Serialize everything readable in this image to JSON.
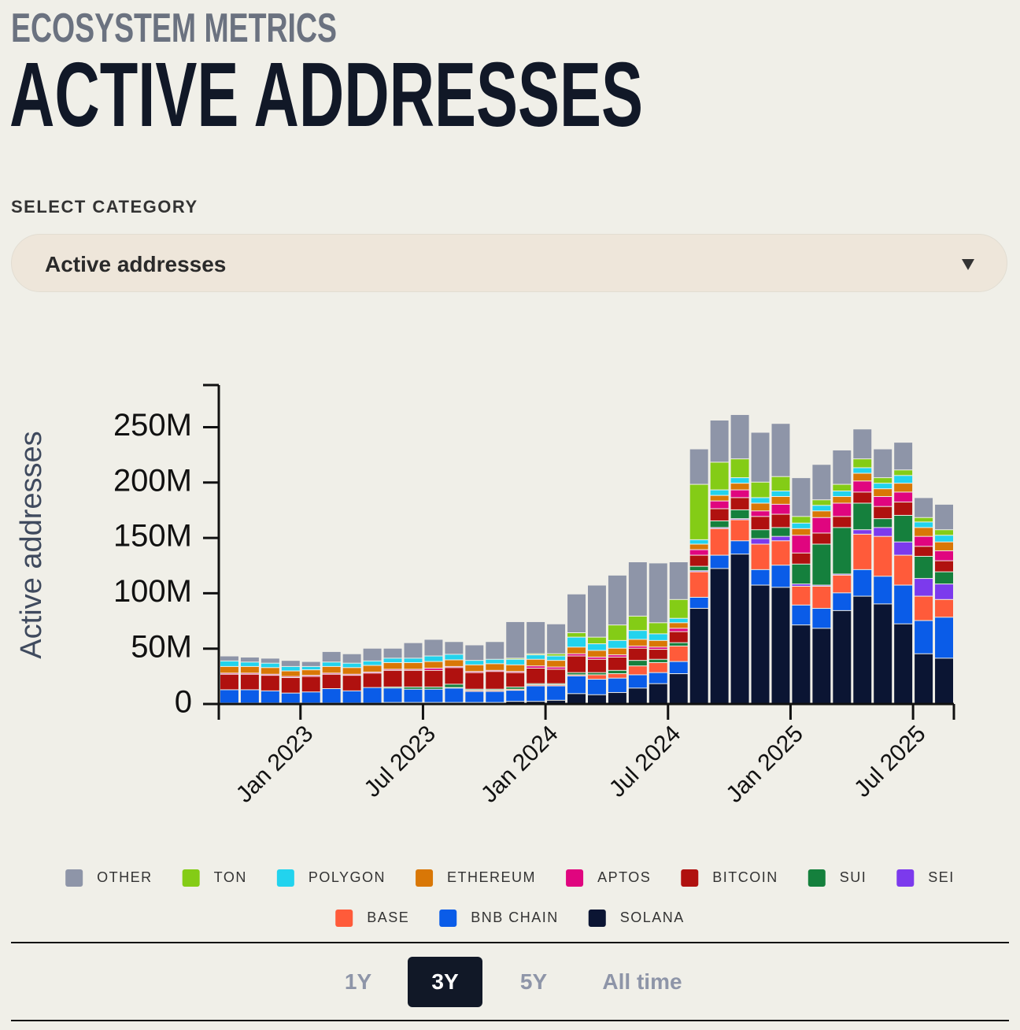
{
  "ui": {
    "eyebrow": "ECOSYSTEM METRICS",
    "heading": "ACTIVE ADDRESSES",
    "select_label": "SELECT CATEGORY",
    "selected": "Active addresses",
    "ranges": [
      "1Y",
      "3Y",
      "5Y",
      "All time"
    ],
    "active_range": "3Y"
  },
  "chart_data": {
    "type": "stacked-bar",
    "y_label": "Active addresses",
    "x": [
      "2022-09",
      "2022-10",
      "2022-11",
      "2022-12",
      "2023-01",
      "2023-02",
      "2023-03",
      "2023-04",
      "2023-05",
      "2023-06",
      "2023-07",
      "2023-08",
      "2023-09",
      "2023-10",
      "2023-11",
      "2023-12",
      "2024-01",
      "2024-02",
      "2024-03",
      "2024-04",
      "2024-05",
      "2024-06",
      "2024-07",
      "2024-08",
      "2024-09",
      "2024-10",
      "2024-11",
      "2024-12",
      "2025-01",
      "2025-02",
      "2025-03",
      "2025-04",
      "2025-05",
      "2025-06",
      "2025-07",
      "2025-08"
    ],
    "xlim": [
      "2022-09",
      "2025-09"
    ],
    "xticks": [
      {
        "value": "2023-01",
        "label": "Jan 2023"
      },
      {
        "value": "2023-07",
        "label": "Jul 2023"
      },
      {
        "value": "2024-01",
        "label": "Jan 2024"
      },
      {
        "value": "2024-07",
        "label": "Jul 2024"
      },
      {
        "value": "2025-01",
        "label": "Jan 2025"
      },
      {
        "value": "2025-07",
        "label": "Jul 2025"
      }
    ],
    "ylim": [
      0,
      288
    ],
    "yticks": [
      0,
      {
        "value": 50,
        "label": "50M"
      },
      {
        "value": 100,
        "label": "100M"
      },
      {
        "value": 150,
        "label": "150M"
      },
      {
        "value": 200,
        "label": "200M"
      },
      {
        "value": 250,
        "label": "250M"
      }
    ],
    "series": [
      {
        "name": "OTHER",
        "color": "#8e95a8",
        "values": [
          4.5,
          4.5,
          4.5,
          5.5,
          4.5,
          9.5,
          8.5,
          11.5,
          9,
          14,
          15,
          11.5,
          14,
          16,
          33,
          29,
          27,
          35,
          47,
          45,
          49,
          54,
          34,
          32,
          38,
          40,
          45,
          48,
          35,
          32,
          31,
          27,
          26,
          25,
          18,
          23
        ]
      },
      {
        "name": "TON",
        "color": "#84cc16",
        "values": [
          0,
          0,
          0,
          0,
          0,
          0,
          0,
          0,
          0,
          0,
          0,
          0,
          0,
          0,
          1,
          1,
          2,
          4,
          6,
          14,
          13,
          10,
          17,
          50,
          25,
          17,
          14,
          13,
          6,
          5,
          6,
          8,
          5,
          5,
          4,
          5
        ]
      },
      {
        "name": "POLYGON",
        "color": "#22d3ee",
        "values": [
          5,
          4,
          4,
          4,
          3,
          4,
          4,
          4,
          4,
          4,
          5,
          5,
          4,
          4,
          5,
          4,
          4,
          9,
          6,
          7,
          8,
          6,
          4,
          4,
          5,
          5,
          5,
          5,
          5,
          5,
          5,
          5,
          5,
          7,
          5,
          6
        ]
      },
      {
        "name": "ETHEREUM",
        "color": "#d97706",
        "values": [
          6,
          6,
          6,
          5,
          5,
          6,
          6,
          6,
          6,
          6,
          6,
          6,
          6,
          6,
          6,
          6,
          6,
          6,
          6,
          6,
          6,
          6,
          5,
          5,
          5,
          6,
          7,
          7,
          6,
          6,
          6,
          7,
          7,
          8,
          8,
          8
        ]
      },
      {
        "name": "APTOS",
        "color": "#e0057f",
        "values": [
          1,
          1,
          1,
          1,
          1,
          1,
          1,
          1,
          1,
          1,
          2,
          1,
          1,
          1,
          1,
          2,
          2,
          2,
          2,
          2,
          2,
          2,
          3,
          5,
          7,
          7,
          5,
          9,
          16,
          14,
          12,
          10,
          9,
          9,
          9,
          9
        ]
      },
      {
        "name": "BITCOIN",
        "color": "#b0110f",
        "values": [
          14,
          14,
          14,
          14,
          14,
          13,
          14,
          13,
          15,
          15,
          15,
          15,
          15,
          16,
          13,
          14,
          13,
          15,
          12,
          12,
          11,
          9,
          10,
          10,
          11,
          11,
          12,
          12,
          10,
          10,
          10,
          10,
          11,
          12,
          9,
          10
        ]
      },
      {
        "name": "SUI",
        "color": "#15803d",
        "values": [
          0,
          0,
          0,
          0,
          0,
          0,
          0,
          0,
          1,
          2,
          2,
          3,
          1,
          1,
          2,
          1,
          1,
          2,
          2,
          3,
          5,
          3,
          3,
          4,
          6,
          8,
          8,
          8,
          18,
          37,
          42,
          24,
          8,
          24,
          20,
          11
        ]
      },
      {
        "name": "SEI",
        "color": "#7c3aed",
        "values": [
          0,
          0,
          0,
          0,
          0,
          0,
          0,
          0,
          0,
          0,
          0,
          0,
          0,
          0,
          0,
          0,
          0,
          0,
          0,
          0,
          0,
          0,
          0,
          1,
          1,
          1,
          5,
          4,
          2,
          1,
          1,
          4,
          8,
          12,
          16,
          14
        ]
      },
      {
        "name": "BASE",
        "color": "#ff5b3a",
        "values": [
          0,
          0,
          0,
          0,
          0,
          0,
          0,
          0,
          0,
          0,
          0,
          0.5,
          1,
          1,
          1,
          1,
          1,
          1,
          4,
          4,
          8,
          9,
          14,
          23,
          24,
          19,
          23,
          22,
          17,
          20,
          16,
          32,
          36,
          27,
          22,
          16
        ]
      },
      {
        "name": "BNB CHAIN",
        "color": "#0a5ce8",
        "values": [
          12,
          12,
          11,
          9,
          10,
          13,
          11,
          14,
          13,
          12,
          12,
          13,
          10,
          10,
          10,
          14,
          13,
          16,
          14,
          13,
          12,
          10,
          11,
          10,
          12,
          12,
          14,
          20,
          18,
          18,
          16,
          24,
          25,
          35,
          30,
          37
        ]
      },
      {
        "name": "SOLANA",
        "color": "#0b1533",
        "values": [
          0.5,
          0.5,
          0.5,
          0.5,
          0.5,
          0.5,
          0.5,
          0.5,
          1,
          1,
          1,
          1,
          1,
          1,
          2,
          2,
          3,
          9,
          8,
          10,
          14,
          18,
          27,
          86,
          122,
          135,
          107,
          105,
          71,
          68,
          84,
          97,
          90,
          72,
          45,
          41
        ]
      }
    ]
  }
}
